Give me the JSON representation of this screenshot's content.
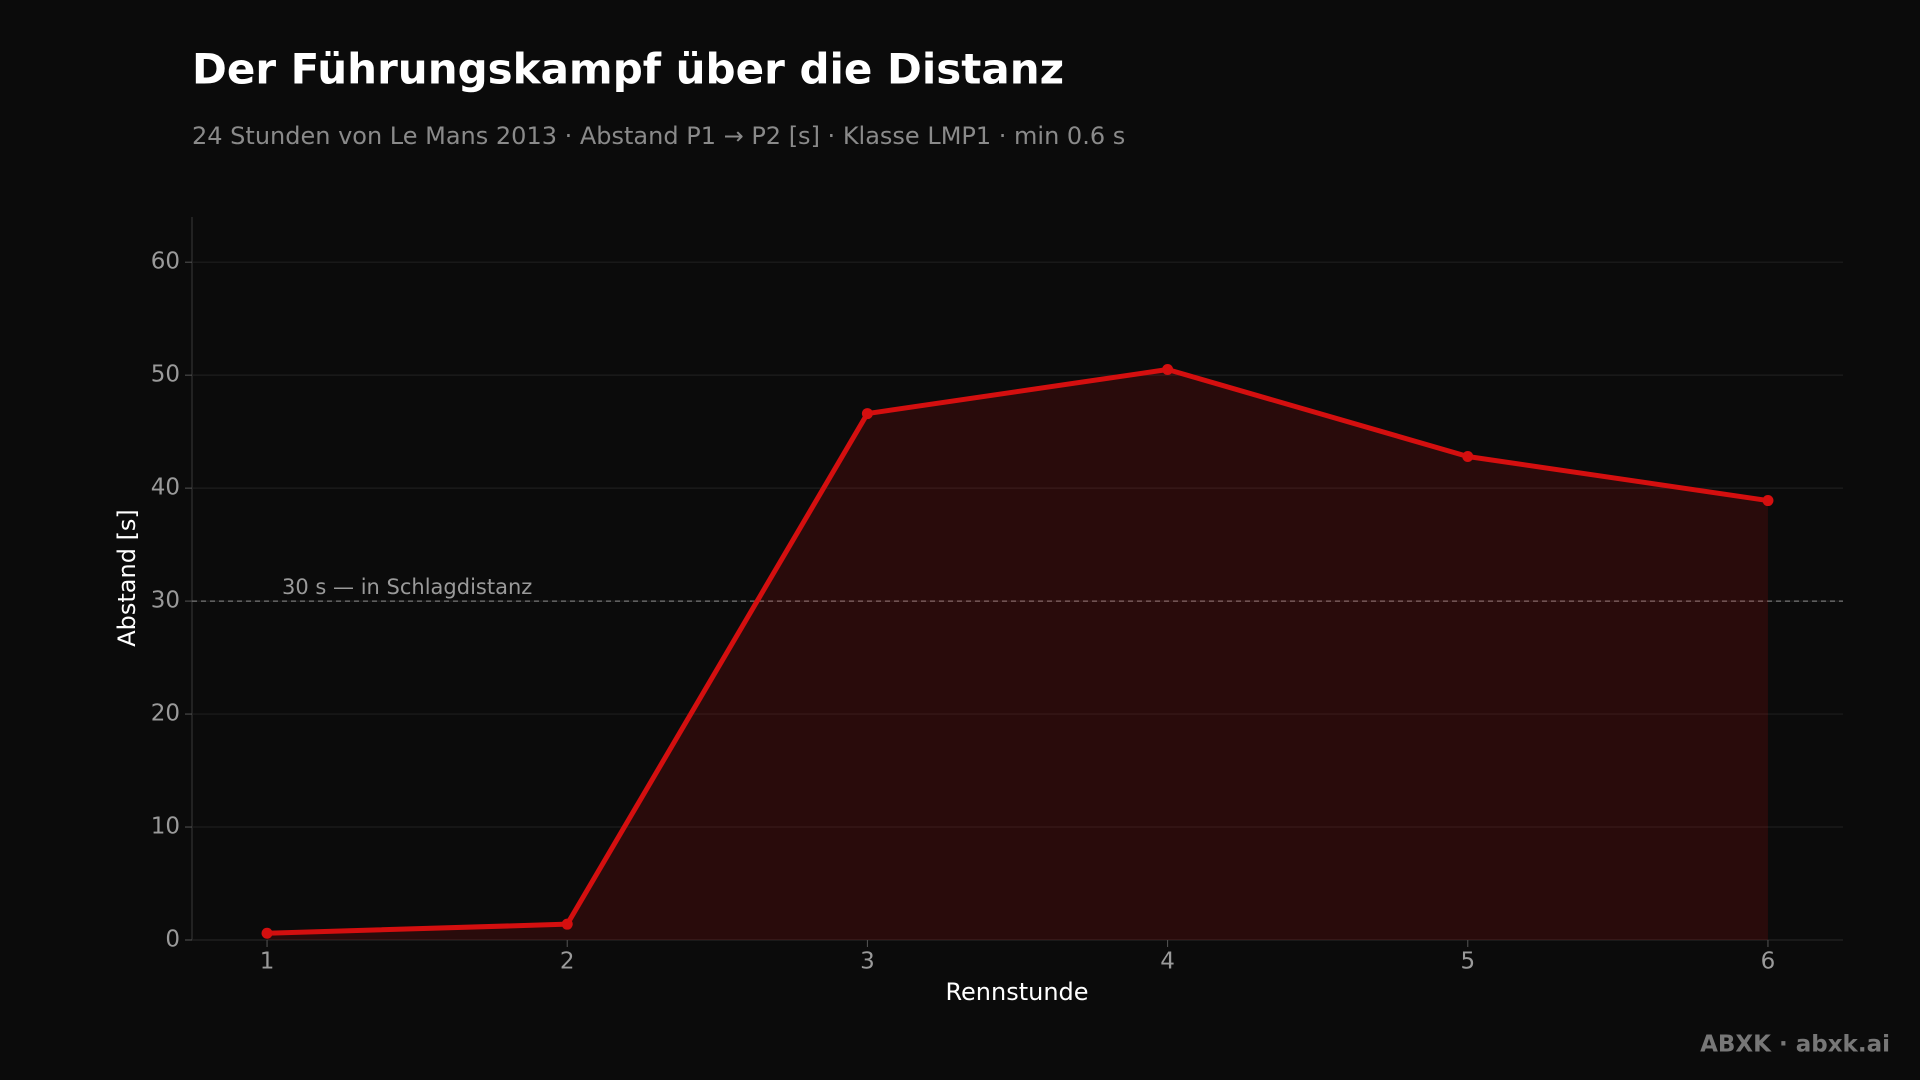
{
  "chart_data": {
    "type": "line",
    "title": "Der Führungskampf über die Distanz",
    "subtitle": "24 Stunden von Le Mans 2013 · Abstand P1 → P2 [s] · Klasse LMP1 · min 0.6 s",
    "x_label": "Rennstunde",
    "y_label": "Abstand [s]",
    "x": [
      1,
      2,
      3,
      4,
      5,
      6
    ],
    "series": [
      {
        "name": "Abstand P1 → P2",
        "color": "#d40f0f",
        "values": [
          0.6,
          1.4,
          46.6,
          50.5,
          42.8,
          38.9
        ]
      }
    ],
    "xlim": [
      0.75,
      6.25
    ],
    "ylim": [
      0,
      64
    ],
    "xticks": [
      1,
      2,
      3,
      4,
      5,
      6
    ],
    "yticks": [
      0,
      10,
      20,
      30,
      40,
      50,
      60
    ],
    "grid": true,
    "reference_line": {
      "value": 30,
      "label": "30 s — in Schlagdistanz"
    },
    "footer": "ABXK · abxk.ai"
  }
}
